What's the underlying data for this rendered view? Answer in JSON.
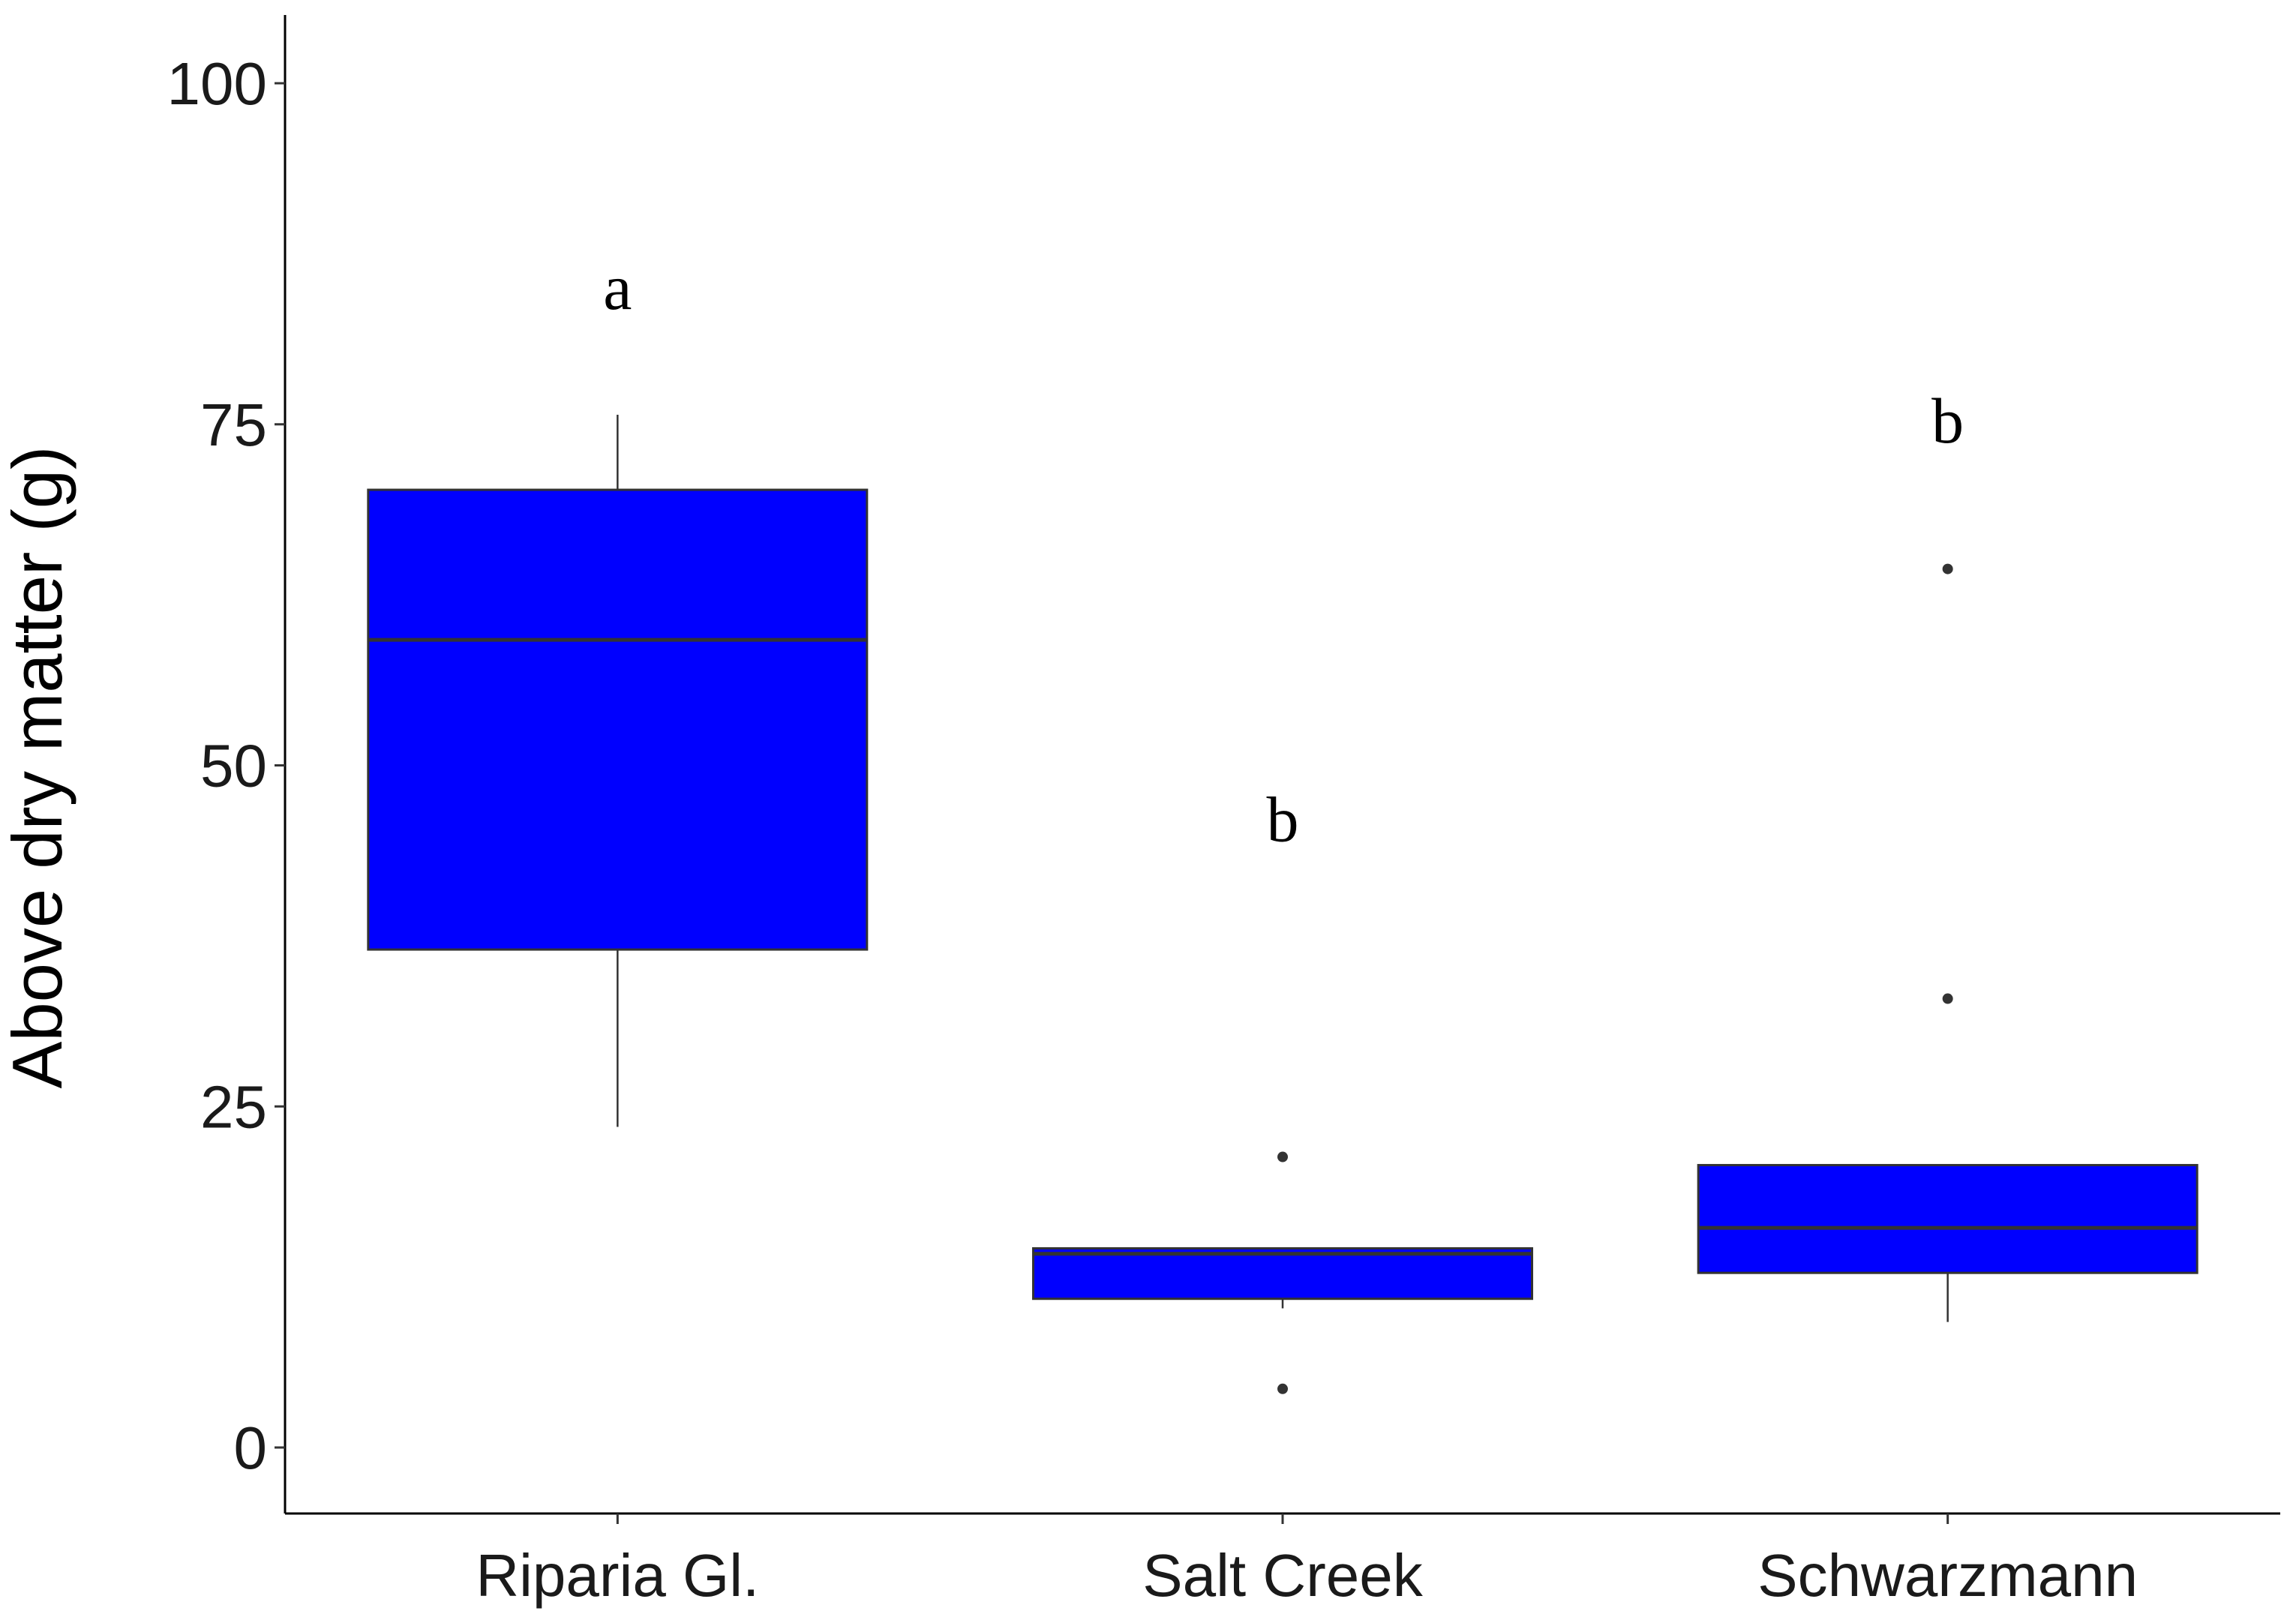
{
  "chart_data": {
    "type": "box",
    "title": "",
    "xlabel": "",
    "ylabel": "Above dry matter (g)",
    "ylim": [
      -4.5,
      105
    ],
    "yticks": [
      0,
      25,
      50,
      75,
      100
    ],
    "grid": false,
    "fill_color": "#0000ff",
    "categories": [
      "Riparia Gl.",
      "Salt Creek",
      "Schwarzmann"
    ],
    "boxes": [
      {
        "category": "Riparia Gl.",
        "whisker_low": 23.5,
        "q1": 36.5,
        "median": 59.2,
        "q3": 70.2,
        "whisker_high": 75.7,
        "outliers": [],
        "letter": "a",
        "letter_y": 85
      },
      {
        "category": "Salt Creek",
        "whisker_low": 10.2,
        "q1": 10.9,
        "median": 14.2,
        "q3": 14.6,
        "whisker_high": 14.6,
        "outliers": [
          21.3,
          4.3
        ],
        "letter": "b",
        "letter_y": 46
      },
      {
        "category": "Schwarzmann",
        "whisker_low": 9.2,
        "q1": 12.8,
        "median": 16.1,
        "q3": 20.7,
        "whisker_high": 20.7,
        "outliers": [
          64.4,
          32.9
        ],
        "letter": "b",
        "letter_y": 75.2
      }
    ]
  }
}
